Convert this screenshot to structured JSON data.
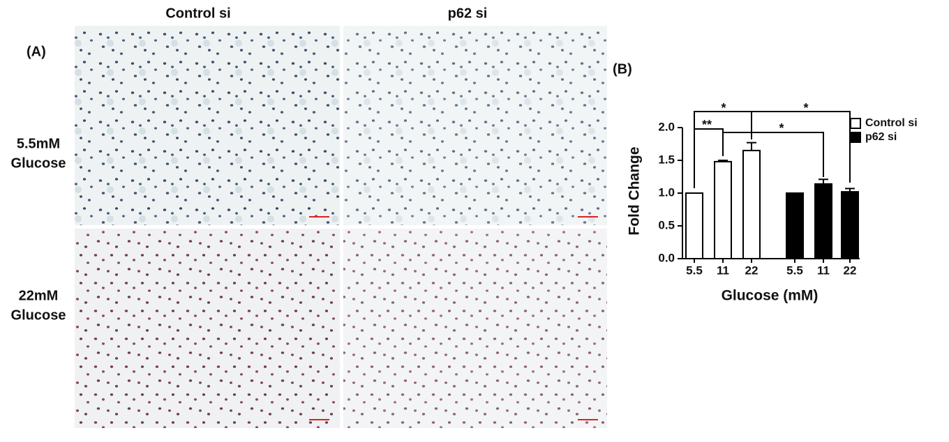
{
  "figure": {
    "panel_a": "(A)",
    "panel_b": "(B)",
    "columns": [
      "Control si",
      "p62 si"
    ],
    "rows": [
      [
        "5.5mM",
        "Glucose"
      ],
      [
        "22mM",
        "Glucose"
      ]
    ]
  },
  "chart_data": {
    "type": "bar",
    "xlabel": "Glucose (mM)",
    "ylabel": "Fold Change",
    "categories": [
      "5.5",
      "11",
      "22",
      "5.5",
      "11",
      "22"
    ],
    "series": [
      {
        "name": "Control si",
        "color": "#ffffff",
        "values": [
          1.0,
          1.48,
          1.65,
          null,
          null,
          null
        ],
        "errors": [
          0,
          0.02,
          0.12,
          null,
          null,
          null
        ]
      },
      {
        "name": "p62 si",
        "color": "#000000",
        "values": [
          null,
          null,
          null,
          1.0,
          1.14,
          1.02
        ],
        "errors": [
          null,
          null,
          null,
          0,
          0.07,
          0.05
        ]
      }
    ],
    "ylim": [
      0,
      2.0
    ],
    "yticks": [
      {
        "value": 0,
        "label": "0.0"
      },
      0.5,
      {
        "value": 1,
        "label": "1.0"
      },
      1.5,
      {
        "value": 2,
        "label": "2.0"
      }
    ],
    "annotations": [
      "*",
      "*",
      "**",
      "*"
    ],
    "legend": "upper right"
  }
}
